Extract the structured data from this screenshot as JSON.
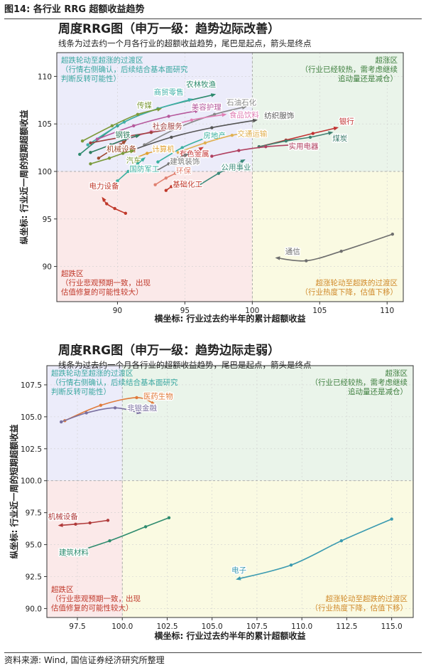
{
  "header": {
    "title": "图14: 各行业 RRG 超额收益趋势"
  },
  "footer": {
    "source": "资料来源: Wind, 国信证券经济研究所整理"
  },
  "colors": {
    "zone_top_left": "#ececfa",
    "zone_top_right": "#eaf4ea",
    "zone_bottom_left": "#fbe9e9",
    "zone_bottom_right": "#fafae2"
  },
  "chart_data": [
    {
      "type": "scatter",
      "title": "周度RRG图（申万一级：趋势边际改善）",
      "subtitle": "线条为过去约一个月各行业的超额收益趋势，尾巴是起点，箭头是终点",
      "xlabel": "横坐标: 行业过去约半年的累计超额收益",
      "ylabel": "纵坐标: 行业近一周的短期超额收益",
      "xlim": [
        85.5,
        111.2
      ],
      "ylim": [
        86.3,
        112.5
      ],
      "xticks": [
        90,
        95,
        100,
        105,
        110
      ],
      "yticks": [
        90,
        95,
        100,
        105,
        110
      ],
      "center": [
        100,
        100
      ],
      "grid": true,
      "zones": [
        {
          "key": "top-left",
          "title": "超跌轮动至超涨的过渡区",
          "lines": [
            "（行情右侧确认，后续结合基本面研究",
            "判断反转可能性）"
          ],
          "color": "#3aa7a0",
          "align": "start"
        },
        {
          "key": "top-right",
          "title": "超涨区",
          "lines": [
            "（行业已经较热，需考虑继续",
            "追动量还是减仓）"
          ],
          "color": "#3f7f3f",
          "align": "end"
        },
        {
          "key": "bottom-left",
          "title": "超跌区",
          "lines": [
            "（行业悲观预期一致，出现",
            "估值修复的可能性较大）"
          ],
          "color": "#c0392b",
          "align": "start"
        },
        {
          "key": "bottom-right",
          "title": "超涨轮动至超跌的过渡区",
          "lines": [
            "（行业热度下降，估值下移）"
          ],
          "color": "#d08a2a",
          "align": "end"
        }
      ],
      "series": [
        {
          "name": "通信",
          "color": "#6e6e6e",
          "points": [
            [
              110.4,
              93.4
            ],
            [
              106.6,
              91.6
            ],
            [
              104.0,
              90.6
            ],
            [
              101.8,
              90.9
            ]
          ],
          "label_at": [
            103.0,
            91.3
          ]
        },
        {
          "name": "农林牧渔",
          "color": "#2e8b6e",
          "points": [
            [
              87.2,
              101.8
            ],
            [
              90.0,
              104.8
            ],
            [
              93.0,
              106.6
            ],
            [
              97.2,
              108.1
            ]
          ],
          "label_at": [
            96.2,
            108.9
          ]
        },
        {
          "name": "商贸零售",
          "color": "#3fb0a8",
          "points": [
            [
              87.8,
              102.8
            ],
            [
              90.5,
              105.2
            ],
            [
              93.0,
              106.6
            ],
            [
              95.5,
              107.6
            ]
          ],
          "label_at": [
            93.8,
            108.1
          ]
        },
        {
          "name": "传媒",
          "color": "#7d9a3a",
          "points": [
            [
              87.4,
              103.2
            ],
            [
              89.6,
              104.8
            ],
            [
              91.5,
              106.0
            ],
            [
              93.2,
              106.6
            ]
          ],
          "label_at": [
            92.0,
            106.7
          ]
        },
        {
          "name": "石油石化",
          "color": "#888888",
          "points": [
            [
              92.0,
              102.8
            ],
            [
              94.5,
              104.6
            ],
            [
              97.2,
              106.0
            ],
            [
              99.5,
              106.8
            ]
          ],
          "label_at": [
            99.2,
            107.0
          ]
        },
        {
          "name": "美容护理",
          "color": "#b5589c",
          "points": [
            [
              88.5,
              103.4
            ],
            [
              91.2,
              104.8
            ],
            [
              93.8,
              105.8
            ],
            [
              96.0,
              106.4
            ]
          ],
          "label_at": [
            96.6,
            106.5
          ]
        },
        {
          "name": "食品饮料",
          "color": "#e07fb5",
          "points": [
            [
              89.5,
              102.8
            ],
            [
              92.5,
              104.2
            ],
            [
              95.5,
              105.4
            ],
            [
              98.0,
              106.0
            ]
          ],
          "label_at": [
            99.4,
            105.7
          ]
        },
        {
          "name": "纺织服饰",
          "color": "#555555",
          "points": [
            [
              91.0,
              102.2
            ],
            [
              94.0,
              103.6
            ],
            [
              97.0,
              104.6
            ],
            [
              100.3,
              105.4
            ]
          ],
          "label_at": [
            102.0,
            105.6
          ]
        },
        {
          "name": "银行",
          "color": "#c03030",
          "points": [
            [
              100.5,
              102.6
            ],
            [
              102.5,
              103.3
            ],
            [
              104.5,
              104.0
            ],
            [
              106.3,
              104.6
            ]
          ],
          "label_at": [
            107.0,
            105.0
          ]
        },
        {
          "name": "煤炭",
          "color": "#3f7f6f",
          "points": [
            [
              100.5,
              102.6
            ],
            [
              102.5,
              103.2
            ],
            [
              104.3,
              103.6
            ],
            [
              105.9,
              104.1
            ]
          ],
          "label_at": [
            106.5,
            103.2
          ]
        },
        {
          "name": "社会服务",
          "color": "#a04040",
          "points": [
            [
              88.0,
              103.0
            ],
            [
              90.3,
              103.6
            ],
            [
              92.5,
              104.1
            ],
            [
              94.5,
              104.6
            ]
          ],
          "label_at": [
            93.7,
            104.5
          ]
        },
        {
          "name": "钢铁",
          "color": "#2e7d5e",
          "points": [
            [
              88.0,
              102.0
            ],
            [
              89.5,
              102.8
            ],
            [
              90.6,
              103.4
            ],
            [
              91.6,
              103.8
            ]
          ],
          "label_at": [
            90.4,
            103.6
          ]
        },
        {
          "name": "房地产",
          "color": "#3ab0a0",
          "points": [
            [
              93.0,
              101.0
            ],
            [
              94.8,
              102.5
            ],
            [
              96.5,
              103.5
            ],
            [
              97.6,
              104.0
            ]
          ],
          "label_at": [
            97.2,
            103.5
          ]
        },
        {
          "name": "交通运输",
          "color": "#e0b050",
          "points": [
            [
              94.5,
              102.0
            ],
            [
              96.5,
              103.0
            ],
            [
              98.5,
              103.8
            ],
            [
              100.5,
              104.3
            ]
          ],
          "label_at": [
            100.0,
            103.7
          ]
        },
        {
          "name": "机械设备",
          "color": "#a04a30",
          "points": [
            [
              88.6,
              101.4
            ],
            [
              89.6,
              102.3
            ],
            [
              90.2,
              102.8
            ],
            [
              90.6,
              103.2
            ]
          ],
          "label_at": [
            90.3,
            102.1
          ]
        },
        {
          "name": "计算机",
          "color": "#e0a030",
          "points": [
            [
              91.0,
              101.2
            ],
            [
              92.2,
              101.9
            ],
            [
              93.1,
              102.2
            ],
            [
              93.6,
              102.5
            ]
          ],
          "label_at": [
            93.4,
            102.1
          ]
        },
        {
          "name": "有色金属",
          "color": "#c84040",
          "points": [
            [
              94.2,
              101.0
            ],
            [
              95.0,
              101.6
            ],
            [
              95.8,
              102.1
            ],
            [
              96.3,
              102.5
            ]
          ],
          "label_at": [
            95.7,
            101.6
          ]
        },
        {
          "name": "实用电器",
          "color": "#b04060",
          "points": [
            [
              97.0,
              101.6
            ],
            [
              99.0,
              102.2
            ],
            [
              101.0,
              102.6
            ],
            [
              103.0,
              102.8
            ]
          ],
          "label_at": [
            103.8,
            102.4
          ]
        },
        {
          "name": "汽车",
          "color": "#7a9a3a",
          "points": [
            [
              88.0,
              100.8
            ],
            [
              89.4,
              101.4
            ],
            [
              90.4,
              101.9
            ],
            [
              91.2,
              102.2
            ]
          ],
          "label_at": [
            91.2,
            100.9
          ]
        },
        {
          "name": "建筑装饰",
          "color": "#777777",
          "points": [
            [
              92.8,
              100.0
            ],
            [
              93.8,
              100.8
            ],
            [
              94.5,
              101.4
            ],
            [
              95.2,
              101.8
            ]
          ],
          "label_at": [
            95.0,
            100.8
          ]
        },
        {
          "name": "国防军工",
          "color": "#3ab0a0",
          "points": [
            [
              90.0,
              99.0
            ],
            [
              90.8,
              100.0
            ],
            [
              91.5,
              100.8
            ],
            [
              92.0,
              101.4
            ]
          ],
          "label_at": [
            92.0,
            100.0
          ]
        },
        {
          "name": "公用事业",
          "color": "#3a8a7a",
          "points": [
            [
              96.0,
              98.5
            ],
            [
              97.5,
              99.8
            ],
            [
              98.6,
              100.6
            ],
            [
              99.4,
              101.2
            ]
          ],
          "label_at": [
            98.8,
            100.2
          ]
        },
        {
          "name": "环保",
          "color": "#e08070",
          "points": [
            [
              92.8,
              98.6
            ],
            [
              93.6,
              99.3
            ],
            [
              94.3,
              99.8
            ],
            [
              94.8,
              100.2
            ]
          ],
          "label_at": [
            94.9,
            99.8
          ]
        },
        {
          "name": "基础化工",
          "color": "#c0392b",
          "points": [
            [
              93.6,
              98.0
            ],
            [
              94.0,
              98.4
            ],
            [
              94.3,
              98.7
            ],
            [
              94.6,
              99.0
            ]
          ],
          "label_at": [
            95.2,
            98.4
          ]
        },
        {
          "name": "电力设备",
          "color": "#c0392b",
          "points": [
            [
              90.6,
              95.6
            ],
            [
              89.8,
              96.1
            ],
            [
              89.2,
              96.6
            ],
            [
              88.9,
              97.2
            ]
          ],
          "label_at": [
            89.0,
            98.2
          ]
        }
      ]
    },
    {
      "type": "scatter",
      "title": "周度RRG图（申万一级：趋势边际走弱）",
      "subtitle": "线条为过去约一个月各行业的超额收益趋势，尾巴是起点，箭头是终点",
      "xlabel": "横坐标: 行业过去约半年的累计超额收益",
      "ylabel": "纵坐标: 行业近一周的短期超额收益",
      "xlim": [
        95.8,
        116.2
      ],
      "ylim": [
        89.3,
        109.0
      ],
      "xticks": [
        97.5,
        100.0,
        102.5,
        105.0,
        107.5,
        110.0,
        112.5,
        115.0
      ],
      "yticks": [
        90.0,
        92.5,
        95.0,
        97.5,
        100.0,
        102.5,
        105.0,
        107.5
      ],
      "center": [
        100,
        100
      ],
      "grid": true,
      "zones": [
        {
          "key": "top-left",
          "title": "超跌轮动至超涨的过渡区",
          "lines": [
            "（行情右侧确认，后续结合基本面研究",
            "判断反转可能性）"
          ],
          "color": "#3aa7a0",
          "align": "start"
        },
        {
          "key": "top-right",
          "title": "超涨区",
          "lines": [
            "（行业已经较热，需考虑继续",
            "追动量还是减仓）"
          ],
          "color": "#3f7f3f",
          "align": "end"
        },
        {
          "key": "bottom-left",
          "title": "超跌区",
          "lines": [
            "（行业悲观预期一致，出现",
            "估值修复的可能性较大）"
          ],
          "color": "#c0392b",
          "align": "start"
        },
        {
          "key": "bottom-right",
          "title": "超涨轮动至超跌的过渡区",
          "lines": [
            "（行业热度下降，估值下移）"
          ],
          "color": "#d08a2a",
          "align": "end"
        }
      ],
      "series": [
        {
          "name": "医药生物",
          "color": "#e07a3a",
          "points": [
            [
              96.8,
              104.7
            ],
            [
              98.8,
              105.9
            ],
            [
              100.8,
              106.5
            ],
            [
              101.8,
              106.0
            ]
          ],
          "label_at": [
            102.0,
            106.4
          ]
        },
        {
          "name": "非银金融",
          "color": "#7a70a0",
          "points": [
            [
              96.6,
              104.6
            ],
            [
              98.0,
              105.3
            ],
            [
              99.6,
              105.7
            ],
            [
              101.0,
              105.3
            ]
          ],
          "label_at": [
            101.1,
            105.5
          ]
        },
        {
          "name": "机械设备",
          "color": "#b03a3a",
          "points": [
            [
              99.2,
              96.9
            ],
            [
              98.2,
              96.7
            ],
            [
              97.4,
              96.6
            ],
            [
              96.5,
              96.5
            ]
          ],
          "label_at": [
            96.7,
            97.0
          ]
        },
        {
          "name": "建筑材料",
          "color": "#2e8b6e",
          "points": [
            [
              102.6,
              97.1
            ],
            [
              101.3,
              96.4
            ],
            [
              99.3,
              95.3
            ],
            [
              96.7,
              94.1
            ]
          ],
          "label_at": [
            97.3,
            94.2
          ]
        },
        {
          "name": "电子",
          "color": "#3a9ab0",
          "points": [
            [
              115.0,
              97.0
            ],
            [
              112.2,
              95.3
            ],
            [
              109.4,
              93.4
            ],
            [
              106.4,
              92.3
            ]
          ],
          "label_at": [
            106.5,
            92.8
          ]
        }
      ]
    }
  ]
}
